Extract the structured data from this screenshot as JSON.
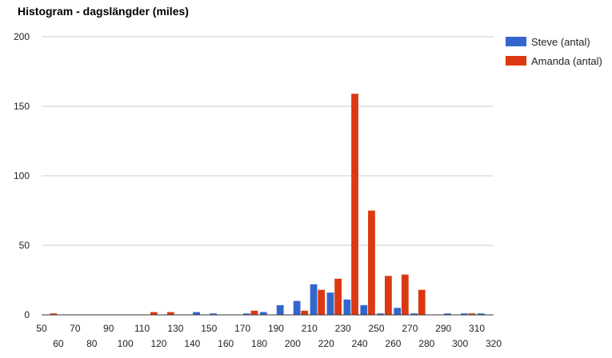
{
  "colors": {
    "steve": "#3366cc",
    "amanda": "#dc3912",
    "grid": "#cccccc",
    "axis": "#333333",
    "text": "#222222"
  },
  "chart_data": {
    "type": "bar",
    "title": "Histogram - dagslängder (miles)",
    "xlabel": "",
    "ylabel": "",
    "ylim": [
      0,
      200
    ],
    "yticks": [
      "0",
      "50",
      "100",
      "150",
      "200"
    ],
    "grid": true,
    "legend_position": "right",
    "x": [
      50,
      60,
      70,
      80,
      90,
      100,
      110,
      120,
      130,
      140,
      150,
      160,
      170,
      180,
      190,
      200,
      210,
      220,
      230,
      240,
      250,
      260,
      270,
      280,
      290,
      300,
      310
    ],
    "xticks_row1": [
      "50",
      "70",
      "90",
      "110",
      "130",
      "150",
      "170",
      "190",
      "210",
      "230",
      "250",
      "270",
      "290",
      "310"
    ],
    "xticks_row2": [
      "60",
      "80",
      "100",
      "120",
      "140",
      "160",
      "180",
      "200",
      "220",
      "240",
      "260",
      "280",
      "300",
      "320"
    ],
    "series": [
      {
        "name": "Steve (antal)",
        "values": [
          0,
          0,
          0,
          0,
          0,
          0,
          0,
          0,
          0,
          2,
          1,
          0,
          1,
          2,
          7,
          10,
          22,
          16,
          11,
          7,
          1,
          5,
          1,
          0,
          1,
          1,
          1
        ]
      },
      {
        "name": "Amanda (antal)",
        "values": [
          1,
          0,
          0,
          0,
          0,
          0,
          2,
          2,
          0,
          0,
          0,
          0,
          3,
          0,
          0,
          3,
          18,
          26,
          159,
          75,
          28,
          29,
          18,
          0,
          0,
          1,
          0
        ]
      }
    ]
  }
}
